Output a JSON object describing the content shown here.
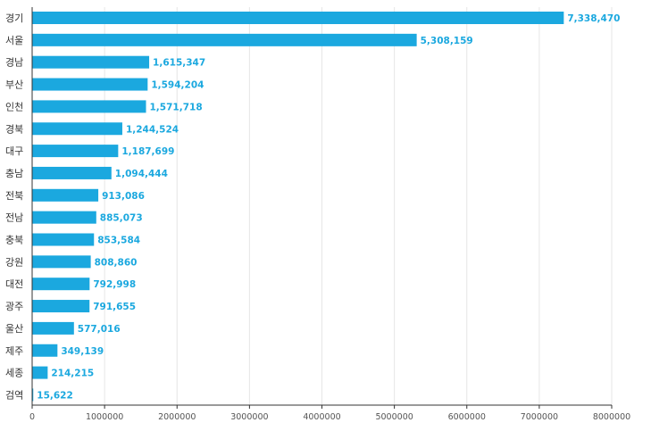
{
  "chart_data": {
    "type": "bar",
    "orientation": "horizontal",
    "categories": [
      "경기",
      "서울",
      "경남",
      "부산",
      "인천",
      "경북",
      "대구",
      "충남",
      "전북",
      "전남",
      "충북",
      "강원",
      "대전",
      "광주",
      "울산",
      "제주",
      "세종",
      "검역"
    ],
    "values": [
      7338470,
      5308159,
      1615347,
      1594204,
      1571718,
      1244524,
      1187699,
      1094444,
      913086,
      885073,
      853584,
      808860,
      792998,
      791655,
      577016,
      349139,
      214215,
      15622
    ],
    "value_labels": [
      "7,338,470",
      "5,308,159",
      "1,615,347",
      "1,594,204",
      "1,571,718",
      "1,244,524",
      "1,187,699",
      "1,094,444",
      "913,086",
      "885,073",
      "853,584",
      "808,860",
      "792,998",
      "791,655",
      "577,016",
      "349,139",
      "214,215",
      "15,622"
    ],
    "x_ticks": [
      0,
      1000000,
      2000000,
      3000000,
      4000000,
      5000000,
      6000000,
      7000000,
      8000000
    ],
    "x_tick_labels": [
      "0",
      "1000000",
      "2000000",
      "3000000",
      "4000000",
      "5000000",
      "6000000",
      "7000000",
      "8000000"
    ],
    "xlim": [
      0,
      8000000
    ],
    "grid": true,
    "title": "",
    "xlabel": "",
    "ylabel": "",
    "colors": {
      "bar": "#1ba8df",
      "value_label": "#1ba8df",
      "grid": "#e6e6e6",
      "axis": "#333333"
    }
  }
}
